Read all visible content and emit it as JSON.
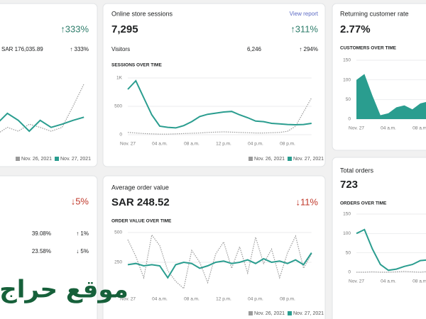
{
  "cards": [
    {
      "headline": "↑333%",
      "subtitle": "SAR 176,035.89",
      "change": "↑ 333%",
      "chart": {
        "type": "line",
        "ylim": [
          0,
          1000
        ],
        "series": [
          {
            "name": "Nov. 26, 2021",
            "color": "#9a9a9a",
            "dashed": true,
            "values": [
              60,
              170,
              110,
              220,
              170,
              110,
              170,
              500,
              850
            ]
          },
          {
            "name": "Nov. 27, 2021",
            "color": "#2a9d8f",
            "values": [
              220,
              390,
              280,
              110,
              280,
              170,
              220,
              280,
              330
            ]
          }
        ]
      }
    },
    {
      "title": "Online store sessions",
      "link": "View report",
      "headline_value": "7,295",
      "headline": "↑311%",
      "row_label": "Visitors",
      "row_value": "6,246",
      "change": "↑ 294%",
      "chart_title": "SESSIONS OVER TIME",
      "chart": {
        "type": "line",
        "ylim": [
          0,
          1000
        ],
        "yticks": [
          {
            "value": 1000,
            "label": "1K"
          },
          500,
          0
        ],
        "categories": [
          "Nov. 27",
          null,
          null,
          null,
          "04 a.m.",
          null,
          null,
          null,
          "08 a.m.",
          null,
          null,
          null,
          "12 p.m.",
          null,
          null,
          null,
          "04 p.m.",
          null,
          null,
          null,
          "08 p.m.",
          null,
          null,
          null
        ],
        "series": [
          {
            "name": "Nov. 26, 2021",
            "color": "#9a9a9a",
            "dashed": true,
            "values": [
              40,
              30,
              20,
              15,
              10,
              10,
              15,
              20,
              25,
              30,
              40,
              45,
              50,
              45,
              40,
              35,
              30,
              30,
              35,
              40,
              60,
              150,
              400,
              650
            ]
          },
          {
            "name": "Nov. 27, 2021",
            "color": "#2a9d8f",
            "values": [
              800,
              950,
              650,
              350,
              150,
              130,
              120,
              160,
              230,
              320,
              360,
              380,
              400,
              410,
              350,
              300,
              240,
              230,
              200,
              190,
              180,
              175,
              180,
              200
            ]
          }
        ]
      }
    },
    {
      "title": "Returning customer rate",
      "headline_value": "2.77%",
      "chart_title": "CUSTOMERS OVER TIME",
      "chart": {
        "type": "area",
        "ylim": [
          0,
          150
        ],
        "yticks": [
          150,
          100,
          50,
          0
        ],
        "categories": [
          "Nov. 27",
          null,
          null,
          null,
          "04 a.m.",
          null,
          null,
          null,
          "08 a.m.",
          null,
          null
        ],
        "series": [
          {
            "color": "#2a9d8f",
            "values": [
              100,
              115,
              60,
              10,
              15,
              30,
              35,
              25,
              40,
              45,
              38
            ]
          }
        ]
      }
    },
    {
      "headline": "↓5%",
      "rows": [
        [
          "39.08%",
          "↑ 1%"
        ],
        [
          "23.58%",
          "↓ 5%"
        ]
      ],
      "watermark": "موقع حراج"
    },
    {
      "title": "Average order value",
      "headline_value": "SAR 248.52",
      "headline": "↓11%",
      "chart_title": "ORDER VALUE OVER TIME",
      "chart": {
        "type": "line",
        "ylim": [
          0,
          500
        ],
        "yticks": [
          500,
          250
        ],
        "categories": [
          "Nov. 27",
          null,
          null,
          null,
          "04 a.m.",
          null,
          null,
          null,
          "08 a.m.",
          null,
          null,
          null,
          "12 p.m.",
          null,
          null,
          null,
          "04 p.m.",
          null,
          null,
          null,
          "08 p.m.",
          null,
          null,
          null
        ],
        "series": [
          {
            "name": "Nov. 26, 2021",
            "color": "#9a9a9a",
            "dashed": true,
            "values": [
              440,
              300,
              120,
              480,
              390,
              180,
              90,
              30,
              350,
              250,
              80,
              320,
              420,
              200,
              380,
              160,
              460,
              240,
              360,
              120,
              330,
              470,
              200,
              320
            ]
          },
          {
            "name": "Nov. 27, 2021",
            "color": "#2a9d8f",
            "values": [
              230,
              240,
              220,
              230,
              220,
              120,
              230,
              250,
              240,
              200,
              220,
              250,
              260,
              240,
              250,
              270,
              240,
              280,
              250,
              260,
              240,
              270,
              230,
              330
            ]
          }
        ]
      }
    },
    {
      "title": "Total orders",
      "headline_value": "723",
      "chart_title": "ORDERS OVER TIME",
      "chart": {
        "type": "line",
        "ylim": [
          0,
          150
        ],
        "yticks": [
          150,
          100,
          50,
          0
        ],
        "categories": [
          "Nov. 27",
          null,
          null,
          null,
          "04 a.m.",
          null,
          null,
          null,
          "08 a.m.",
          null,
          null
        ],
        "series": [
          {
            "color": "#9a9a9a",
            "dashed": true,
            "values": [
              0,
              0,
              1,
              0,
              0,
              1,
              2,
              1,
              0,
              2,
              3
            ]
          },
          {
            "color": "#2a9d8f",
            "values": [
              100,
              110,
              60,
              20,
              5,
              8,
              15,
              20,
              30,
              32,
              28
            ]
          }
        ]
      }
    }
  ]
}
